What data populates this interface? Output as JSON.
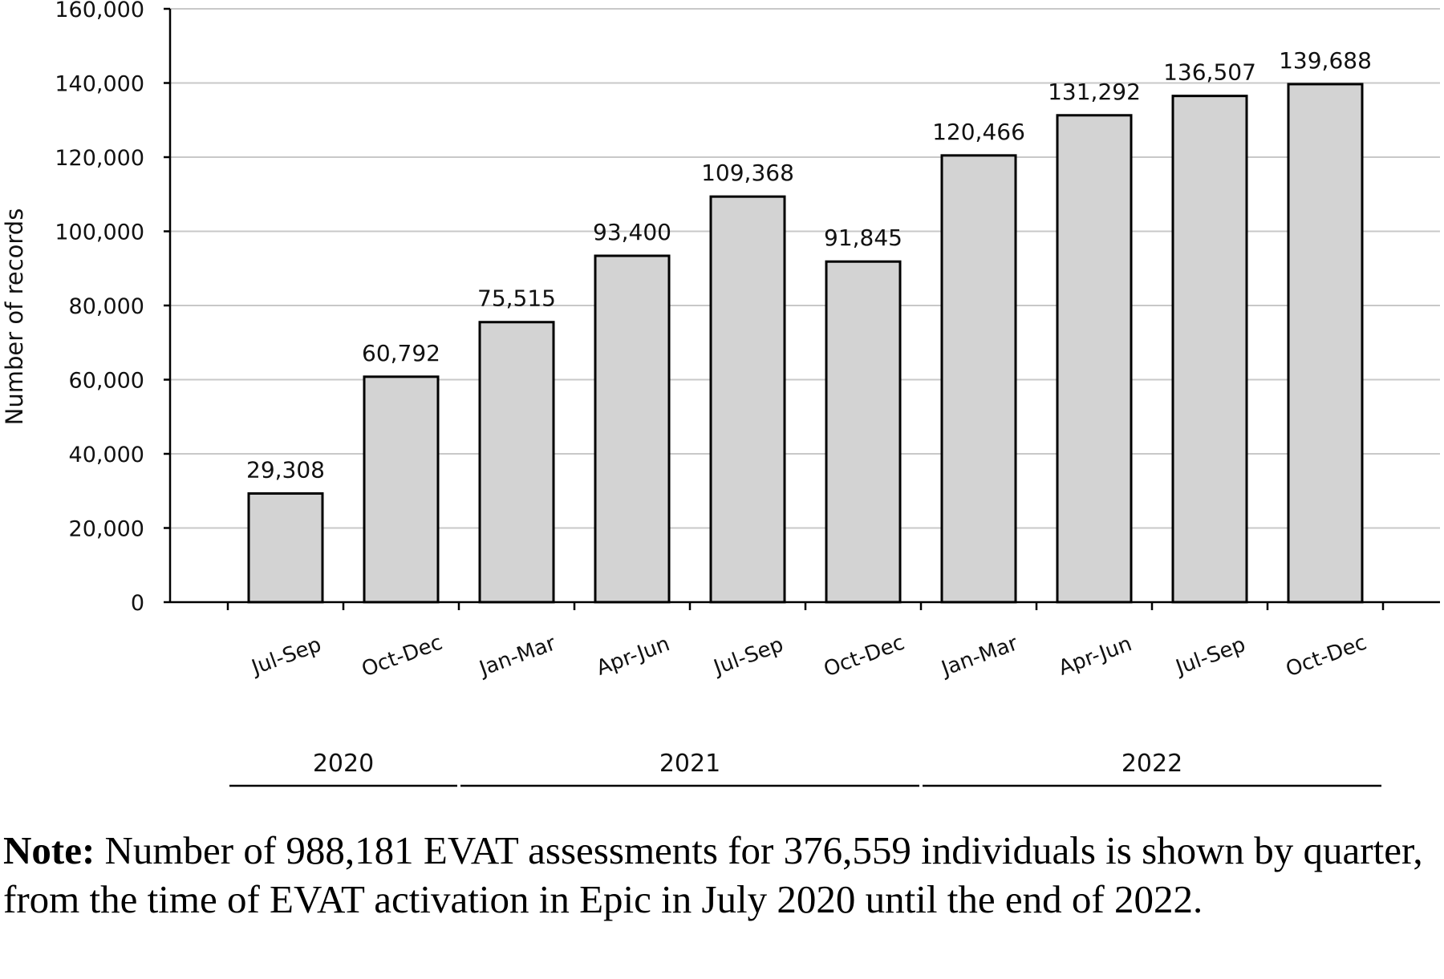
{
  "chart_data": {
    "type": "bar",
    "categories": [
      "Jul-Sep",
      "Oct-Dec",
      "Jan-Mar",
      "Apr-Jun",
      "Jul-Sep",
      "Oct-Dec",
      "Jan-Mar",
      "Apr-Jun",
      "Jul-Sep",
      "Oct-Dec"
    ],
    "values": [
      29308,
      60792,
      75515,
      93400,
      109368,
      91845,
      120466,
      131292,
      136507,
      139688
    ],
    "value_labels": [
      "29,308",
      "60,792",
      "75,515",
      "93,400",
      "109,368",
      "91,845",
      "120,466",
      "131,292",
      "136,507",
      "139,688"
    ],
    "year_groups": [
      {
        "label": "2020",
        "first": 0,
        "last": 1
      },
      {
        "label": "2021",
        "first": 2,
        "last": 5
      },
      {
        "label": "2022",
        "first": 6,
        "last": 9
      }
    ],
    "ylabel": "Number of records",
    "ylim": [
      0,
      160000
    ],
    "yticks": [
      0,
      20000,
      40000,
      60000,
      80000,
      100000,
      120000,
      140000,
      160000
    ],
    "ytick_labels": [
      "0",
      "20,000",
      "40,000",
      "60,000",
      "80,000",
      "100,000",
      "120,000",
      "140,000",
      "160,000"
    ],
    "grid": true,
    "bar_color": "#d3d3d3",
    "bar_edge_color": "#000000",
    "grid_color": "#c8c8c8"
  },
  "note": {
    "bold": "Note:",
    "text": " Number of 988,181 EVAT assessments for 376,559 individuals is shown by quarter, from the time of EVAT activation in Epic in July 2020 until the end of 2022."
  }
}
